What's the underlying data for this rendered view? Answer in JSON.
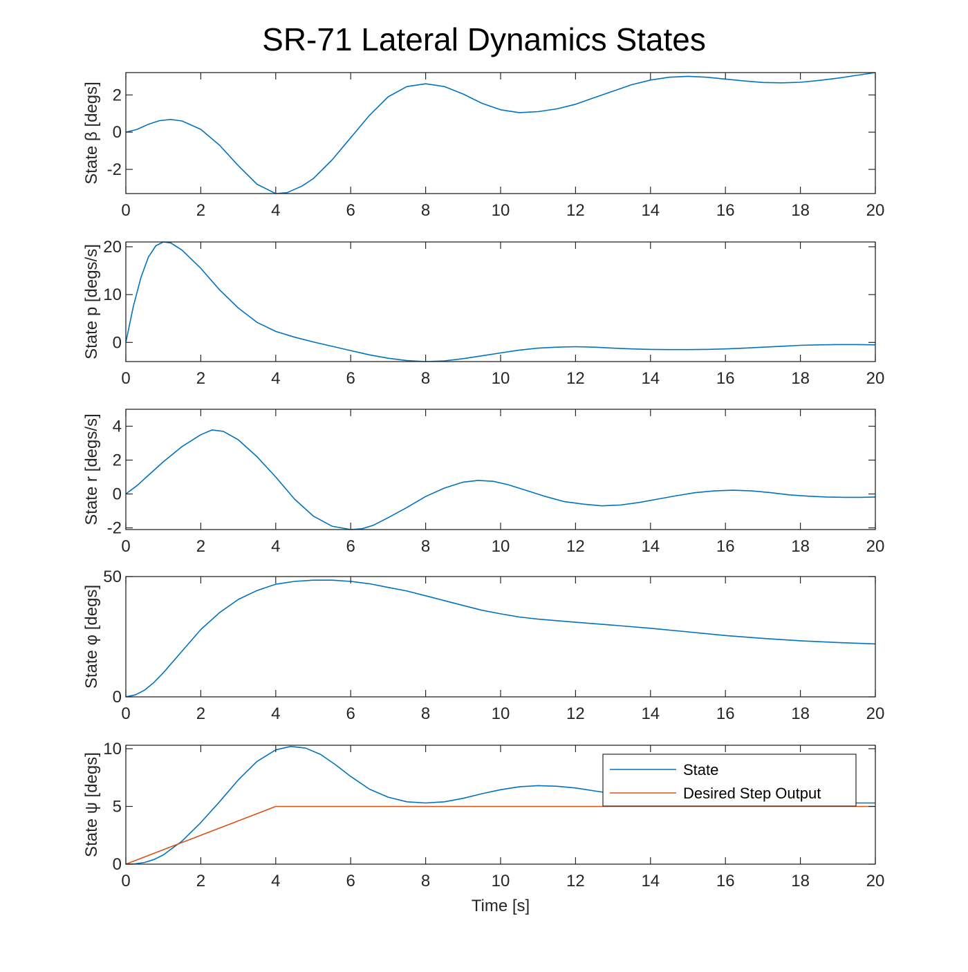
{
  "figure": {
    "title": "SR-71 Lateral Dynamics States",
    "xlabel": "Time [s]"
  },
  "colors": {
    "state": "#0072BD",
    "desired": "#D95319",
    "axis": "#262626"
  },
  "chart_data": [
    {
      "type": "line",
      "ylabel": "State β [degs]",
      "xlim": [
        0,
        20
      ],
      "ylim": [
        -3.3,
        3.2
      ],
      "xticks": [
        0,
        2,
        4,
        6,
        8,
        10,
        12,
        14,
        16,
        18,
        20
      ],
      "yticks": [
        -2,
        0,
        2
      ],
      "ytick_labels": [
        "-2",
        "0",
        "2"
      ],
      "series": [
        {
          "x": [
            0,
            0.3,
            0.6,
            0.9,
            1.2,
            1.5,
            2,
            2.5,
            3,
            3.5,
            4,
            4.3,
            4.7,
            5,
            5.5,
            6,
            6.5,
            7,
            7.5,
            8,
            8.5,
            9,
            9.5,
            10,
            10.5,
            11,
            11.5,
            12,
            12.5,
            13,
            13.5,
            14,
            14.5,
            15,
            15.5,
            16,
            16.5,
            17,
            17.5,
            18,
            18.5,
            19,
            19.5,
            20
          ],
          "y": [
            0,
            0.15,
            0.42,
            0.62,
            0.68,
            0.6,
            0.15,
            -0.7,
            -1.8,
            -2.8,
            -3.3,
            -3.25,
            -2.9,
            -2.5,
            -1.5,
            -0.3,
            0.9,
            1.9,
            2.45,
            2.6,
            2.45,
            2.05,
            1.55,
            1.2,
            1.05,
            1.1,
            1.25,
            1.5,
            1.85,
            2.2,
            2.55,
            2.8,
            2.95,
            3.0,
            2.95,
            2.85,
            2.75,
            2.67,
            2.65,
            2.68,
            2.78,
            2.9,
            3.05,
            3.2
          ]
        }
      ]
    },
    {
      "type": "line",
      "ylabel": "State p [degs/s]",
      "xlim": [
        0,
        20
      ],
      "ylim": [
        -4,
        21
      ],
      "xticks": [
        0,
        2,
        4,
        6,
        8,
        10,
        12,
        14,
        16,
        18,
        20
      ],
      "yticks": [
        0,
        10,
        20
      ],
      "ytick_labels": [
        "0",
        "10",
        "20"
      ],
      "series": [
        {
          "x": [
            0,
            0.2,
            0.4,
            0.6,
            0.8,
            1.0,
            1.2,
            1.5,
            2,
            2.5,
            3,
            3.5,
            4,
            4.5,
            5,
            5.5,
            6,
            6.5,
            7,
            7.5,
            8,
            8.5,
            9,
            9.5,
            10,
            10.5,
            11,
            11.5,
            12,
            12.5,
            13,
            13.5,
            14,
            14.5,
            15,
            15.5,
            16,
            16.5,
            17,
            17.5,
            18,
            18.5,
            19,
            19.5,
            20
          ],
          "y": [
            0,
            7.5,
            13.5,
            17.8,
            20.2,
            21.0,
            20.8,
            19.3,
            15.5,
            11.0,
            7.2,
            4.2,
            2.3,
            1.1,
            0.1,
            -0.8,
            -1.7,
            -2.6,
            -3.3,
            -3.8,
            -4.0,
            -3.85,
            -3.4,
            -2.8,
            -2.2,
            -1.6,
            -1.2,
            -1.0,
            -0.9,
            -1.0,
            -1.2,
            -1.35,
            -1.45,
            -1.5,
            -1.5,
            -1.45,
            -1.35,
            -1.2,
            -1.0,
            -0.8,
            -0.6,
            -0.5,
            -0.45,
            -0.45,
            -0.5
          ]
        }
      ]
    },
    {
      "type": "line",
      "ylabel": "State r [degs/s]",
      "xlim": [
        0,
        20
      ],
      "ylim": [
        -2.1,
        5
      ],
      "xticks": [
        0,
        2,
        4,
        6,
        8,
        10,
        12,
        14,
        16,
        18,
        20
      ],
      "yticks": [
        -2,
        0,
        2,
        4
      ],
      "ytick_labels": [
        "-2",
        "0",
        "2",
        "4"
      ],
      "series": [
        {
          "x": [
            0,
            0.3,
            0.6,
            1,
            1.5,
            2,
            2.3,
            2.6,
            3,
            3.5,
            4,
            4.5,
            5,
            5.5,
            6,
            6.3,
            6.6,
            7,
            7.5,
            8,
            8.5,
            9,
            9.4,
            9.8,
            10.2,
            10.7,
            11.2,
            11.7,
            12.2,
            12.7,
            13.2,
            13.7,
            14.2,
            14.7,
            15.2,
            15.7,
            16.2,
            16.7,
            17.2,
            17.7,
            18.2,
            18.7,
            19.2,
            19.6,
            20
          ],
          "y": [
            0,
            0.5,
            1.1,
            1.9,
            2.8,
            3.5,
            3.78,
            3.7,
            3.2,
            2.2,
            1.0,
            -0.3,
            -1.3,
            -1.9,
            -2.1,
            -2.05,
            -1.85,
            -1.4,
            -0.8,
            -0.15,
            0.35,
            0.7,
            0.8,
            0.75,
            0.55,
            0.2,
            -0.15,
            -0.45,
            -0.6,
            -0.7,
            -0.65,
            -0.5,
            -0.3,
            -0.1,
            0.08,
            0.18,
            0.22,
            0.18,
            0.08,
            -0.05,
            -0.13,
            -0.18,
            -0.2,
            -0.2,
            -0.18
          ]
        }
      ]
    },
    {
      "type": "line",
      "ylabel": "State φ [degs]",
      "xlim": [
        0,
        20
      ],
      "ylim": [
        0,
        50
      ],
      "xticks": [
        0,
        2,
        4,
        6,
        8,
        10,
        12,
        14,
        16,
        18,
        20
      ],
      "yticks": [
        0,
        50
      ],
      "ytick_labels": [
        "0",
        "50"
      ],
      "series": [
        {
          "x": [
            0,
            0.25,
            0.5,
            0.75,
            1,
            1.5,
            2,
            2.5,
            3,
            3.5,
            4,
            4.5,
            5,
            5.5,
            6,
            6.5,
            7,
            7.5,
            8,
            8.5,
            9,
            9.5,
            10,
            10.5,
            11,
            12,
            13,
            14,
            15,
            16,
            17,
            18,
            19,
            20
          ],
          "y": [
            0,
            0.8,
            2.8,
            6.0,
            10.0,
            19.0,
            28.0,
            35.0,
            40.5,
            44.2,
            46.8,
            48.0,
            48.5,
            48.5,
            48.0,
            47.0,
            45.5,
            44.0,
            42.0,
            40.0,
            38.0,
            36.0,
            34.5,
            33.2,
            32.3,
            31.0,
            29.8,
            28.5,
            27.0,
            25.5,
            24.3,
            23.3,
            22.6,
            22.0
          ]
        }
      ]
    },
    {
      "type": "line",
      "ylabel": "State ψ [degs]",
      "xlim": [
        0,
        20
      ],
      "ylim": [
        0,
        10.3
      ],
      "xticks": [
        0,
        2,
        4,
        6,
        8,
        10,
        12,
        14,
        16,
        18,
        20
      ],
      "yticks": [
        0,
        5,
        10
      ],
      "ytick_labels": [
        "0",
        "5",
        "10"
      ],
      "legend_position": "top-right",
      "series": [
        {
          "name": "State",
          "x": [
            0,
            0.25,
            0.5,
            0.75,
            1,
            1.5,
            2,
            2.5,
            3,
            3.5,
            4,
            4.4,
            4.8,
            5.2,
            5.6,
            6,
            6.5,
            7,
            7.5,
            8,
            8.5,
            9,
            9.5,
            10,
            10.5,
            11,
            11.5,
            12,
            12.5,
            13,
            13.5,
            14,
            14.5,
            15,
            15.5,
            16,
            16.5,
            17,
            17.5,
            18,
            18.5,
            19,
            19.5,
            20
          ],
          "y": [
            0,
            0.03,
            0.15,
            0.4,
            0.8,
            2.0,
            3.6,
            5.4,
            7.3,
            8.9,
            9.9,
            10.2,
            10.05,
            9.5,
            8.6,
            7.6,
            6.5,
            5.8,
            5.4,
            5.3,
            5.4,
            5.7,
            6.1,
            6.45,
            6.7,
            6.8,
            6.75,
            6.6,
            6.35,
            6.1,
            5.85,
            5.7,
            5.6,
            5.55,
            5.55,
            5.6,
            5.65,
            5.65,
            5.6,
            5.5,
            5.4,
            5.35,
            5.3,
            5.3
          ]
        },
        {
          "name": "Desired Step Output",
          "x": [
            0,
            4,
            20
          ],
          "y": [
            0,
            5,
            5
          ]
        }
      ]
    }
  ]
}
